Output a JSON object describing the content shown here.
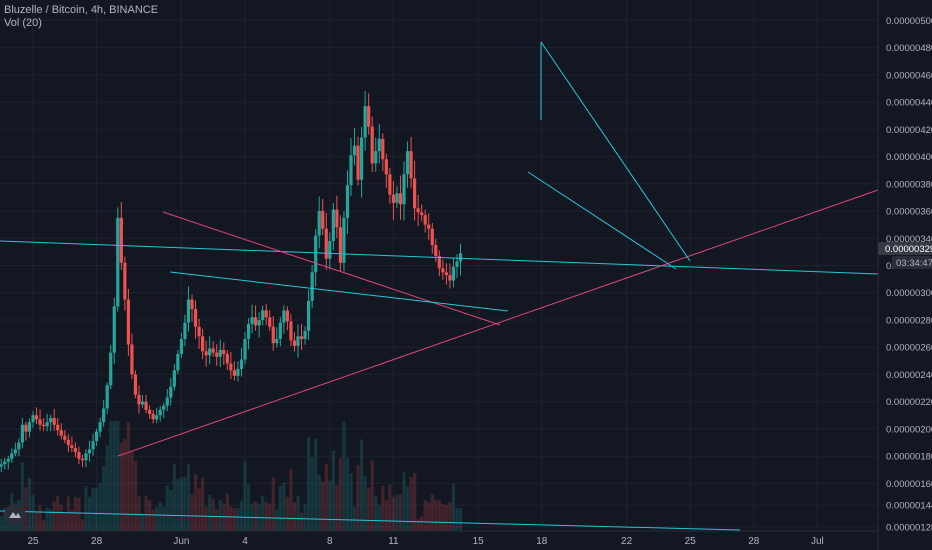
{
  "header": {
    "symbol_line": "Bluzelle / Bitcoin, 4h, BINANCE",
    "volume_label": "Vol (20)"
  },
  "price_badge": {
    "price": "0.00000329",
    "countdown": "03:34:47"
  },
  "colors": {
    "up": "#26a69a",
    "down": "#ef5350",
    "cyan_line": "#26c6da",
    "pink_line": "#e0457b",
    "badge": "#363a45"
  },
  "chart_data": {
    "type": "candlestick",
    "title": "Bluzelle / Bitcoin, 4h, BINANCE",
    "ylim": [
      1.25e-06,
      5.15e-06
    ],
    "y_ticks": [
      "0.00000500",
      "0.00000480",
      "0.00000460",
      "0.00000440",
      "0.00000420",
      "0.00000400",
      "0.00000380",
      "0.00000360",
      "0.00000340",
      "0.00000320",
      "0.00000300",
      "0.00000280",
      "0.00000260",
      "0.00000240",
      "0.00000220",
      "0.00000200",
      "0.00000180",
      "0.00000160",
      "0.00000144",
      "0.00000128"
    ],
    "x_ticks": [
      "25",
      "28",
      "Jun",
      "4",
      "8",
      "11",
      "15",
      "18",
      "22",
      "25",
      "28",
      "Jul"
    ],
    "x_tick_days": [
      25,
      28,
      32,
      35,
      39,
      42,
      46,
      49,
      53,
      56,
      59,
      62
    ],
    "x_start_day": 23.5,
    "closes": [
      1.74e-06,
      1.76e-06,
      1.78e-06,
      1.82e-06,
      1.85e-06,
      1.9e-06,
      2.03e-06,
      1.98e-06,
      2.05e-06,
      2.1e-06,
      2.07e-06,
      2.03e-06,
      2.02e-06,
      2.05e-06,
      2.08e-06,
      2.03e-06,
      1.99e-06,
      1.95e-06,
      1.92e-06,
      1.88e-06,
      1.86e-06,
      1.83e-06,
      1.78e-06,
      1.77e-06,
      1.82e-06,
      1.85e-06,
      1.91e-06,
      1.98e-06,
      2.05e-06,
      2.15e-06,
      2.32e-06,
      2.56e-06,
      2.9e-06,
      3.55e-06,
      3.22e-06,
      2.95e-06,
      2.62e-06,
      2.4e-06,
      2.25e-06,
      2.18e-06,
      2.2e-06,
      2.14e-06,
      2.11e-06,
      2.07e-06,
      2.1e-06,
      2.14e-06,
      2.17e-06,
      2.23e-06,
      2.31e-06,
      2.43e-06,
      2.55e-06,
      2.66e-06,
      2.78e-06,
      2.95e-06,
      2.88e-06,
      2.75e-06,
      2.68e-06,
      2.57e-06,
      2.54e-06,
      2.59e-06,
      2.56e-06,
      2.53e-06,
      2.58e-06,
      2.55e-06,
      2.48e-06,
      2.43e-06,
      2.39e-06,
      2.44e-06,
      2.51e-06,
      2.66e-06,
      2.77e-06,
      2.82e-06,
      2.76e-06,
      2.8e-06,
      2.87e-06,
      2.82e-06,
      2.75e-06,
      2.63e-06,
      2.66e-06,
      2.78e-06,
      2.87e-06,
      2.79e-06,
      2.65e-06,
      2.61e-06,
      2.68e-06,
      2.66e-06,
      2.72e-06,
      2.94e-06,
      3.15e-06,
      3.42e-06,
      3.6e-06,
      3.47e-06,
      3.25e-06,
      3.38e-06,
      3.61e-06,
      3.48e-06,
      3.22e-06,
      3.55e-06,
      3.79e-06,
      4.01e-06,
      4.08e-06,
      3.83e-06,
      4.14e-06,
      4.37e-06,
      4.22e-06,
      3.95e-06,
      4.04e-06,
      4.13e-06,
      3.98e-06,
      3.87e-06,
      3.72e-06,
      3.66e-06,
      3.73e-06,
      3.65e-06,
      3.87e-06,
      4.04e-06,
      3.84e-06,
      3.62e-06,
      3.59e-06,
      3.57e-06,
      3.5e-06,
      3.47e-06,
      3.35e-06,
      3.27e-06,
      3.18e-06,
      3.15e-06,
      3.13e-06,
      3.09e-06,
      3.19e-06,
      3.23e-06,
      3.29e-06
    ],
    "volume_peak_positions": [
      0.36,
      0.58,
      0.8,
      0.9
    ]
  }
}
